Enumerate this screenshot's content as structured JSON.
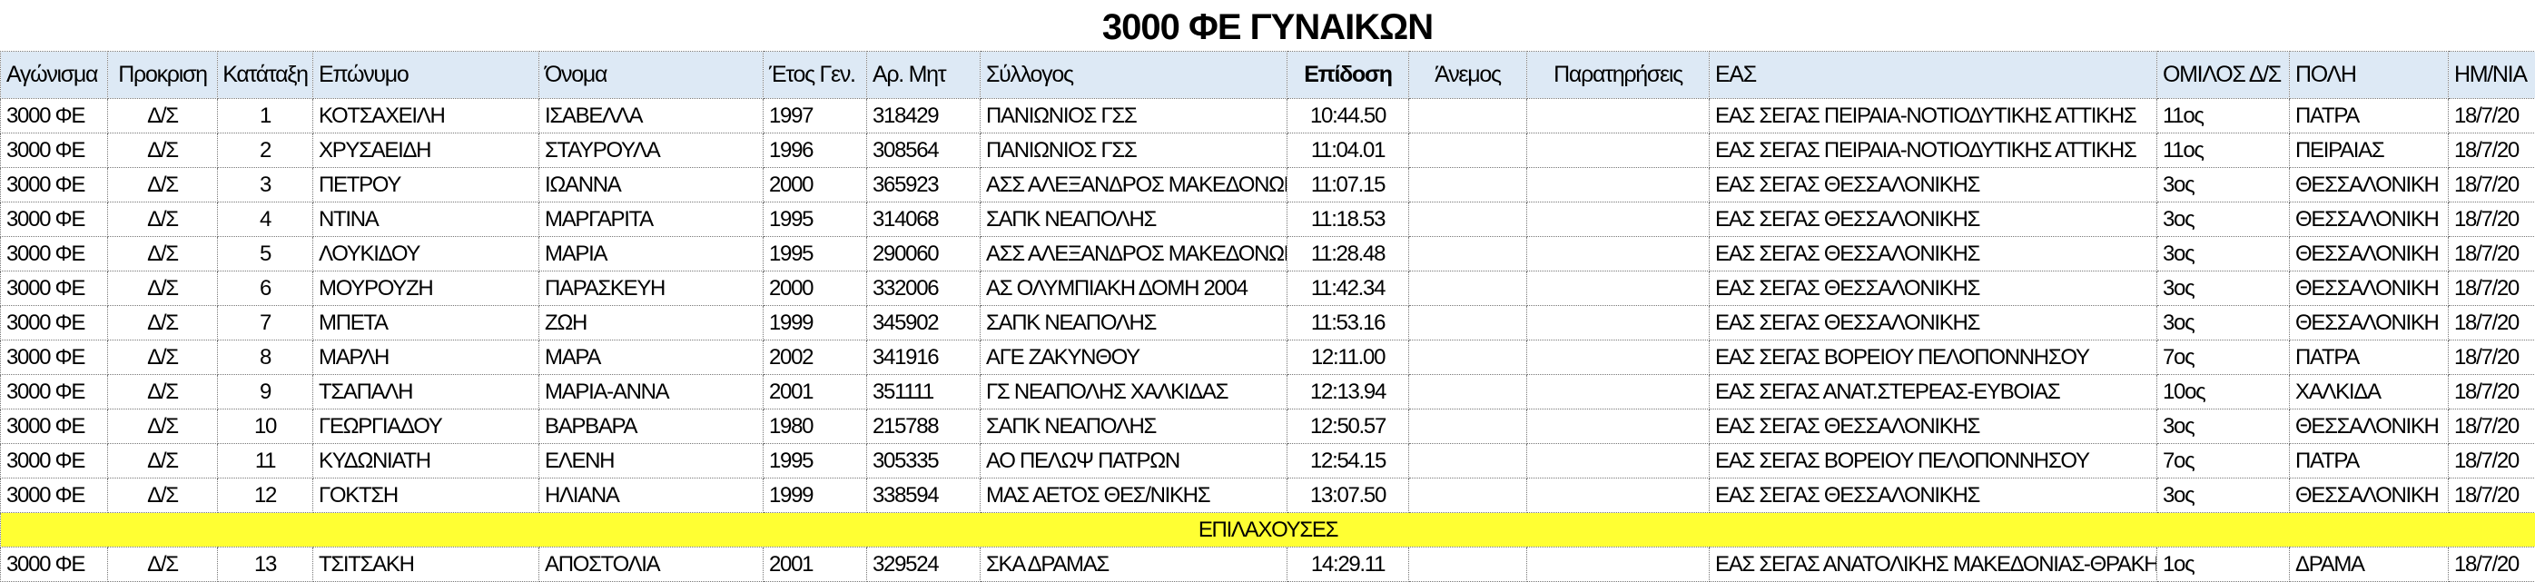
{
  "title": "3000 ΦΕ ΓΥΝΑΙΚΩΝ",
  "colors": {
    "header_bg": "#dde9f5",
    "substitutes_bg": "#ffff33"
  },
  "columns": [
    "Αγώνισμα",
    "Προκριση",
    "Κατάταξη",
    "Επώνυμο",
    "Όνομα",
    "Έτος Γεν.",
    "Αρ. Μητ",
    "Σύλλογος",
    "Επίδοση",
    "Άνεμος",
    "Παρατηρήσεις",
    "ΕΑΣ",
    "ΟΜΙΛΟΣ Δ/Σ",
    "ΠΟΛΗ",
    "ΗΜ/ΝΙΑ"
  ],
  "rows": [
    [
      "3000 ΦΕ",
      "Δ/Σ",
      "1",
      "ΚΟΤΣΑΧΕΙΛΗ",
      "ΙΣΑΒΕΛΛΑ",
      "1997",
      "318429",
      "ΠΑΝΙΩΝΙΟΣ ΓΣΣ",
      "10:44.50",
      "",
      "",
      "ΕΑΣ ΣΕΓΑΣ ΠΕΙΡΑΙΑ-ΝΟΤΙΟΔΥΤΙΚΗΣ ΑΤΤΙΚΗΣ",
      "11ος",
      "ΠΑΤΡΑ",
      "18/7/20"
    ],
    [
      "3000 ΦΕ",
      "Δ/Σ",
      "2",
      "ΧΡΥΣΑΕΙΔΗ",
      "ΣΤΑΥΡΟΥΛΑ",
      "1996",
      "308564",
      "ΠΑΝΙΩΝΙΟΣ ΓΣΣ",
      "11:04.01",
      "",
      "",
      "ΕΑΣ ΣΕΓΑΣ ΠΕΙΡΑΙΑ-ΝΟΤΙΟΔΥΤΙΚΗΣ ΑΤΤΙΚΗΣ",
      "11ος",
      "ΠΕΙΡΑΙΑΣ",
      "18/7/20"
    ],
    [
      "3000 ΦΕ",
      "Δ/Σ",
      "3",
      "ΠΕΤΡΟΥ",
      "ΙΩΑΝΝΑ",
      "2000",
      "365923",
      "ΑΣΣ ΑΛΕΞΑΝΔΡΟΣ ΜΑΚΕΔΟΝΩΝ",
      "11:07.15",
      "",
      "",
      "ΕΑΣ ΣΕΓΑΣ ΘΕΣΣΑΛΟΝΙΚΗΣ",
      "3ος",
      "ΘΕΣΣΑΛΟΝΙΚΗ",
      "18/7/20"
    ],
    [
      "3000 ΦΕ",
      "Δ/Σ",
      "4",
      "ΝΤΙΝΑ",
      "ΜΑΡΓΑΡΙΤΑ",
      "1995",
      "314068",
      "ΣΑΠΚ ΝΕΑΠΟΛΗΣ",
      "11:18.53",
      "",
      "",
      "ΕΑΣ ΣΕΓΑΣ ΘΕΣΣΑΛΟΝΙΚΗΣ",
      "3ος",
      "ΘΕΣΣΑΛΟΝΙΚΗ",
      "18/7/20"
    ],
    [
      "3000 ΦΕ",
      "Δ/Σ",
      "5",
      "ΛΟΥΚΙΔΟΥ",
      "ΜΑΡΙΑ",
      "1995",
      "290060",
      "ΑΣΣ ΑΛΕΞΑΝΔΡΟΣ ΜΑΚΕΔΟΝΩΝ",
      "11:28.48",
      "",
      "",
      "ΕΑΣ ΣΕΓΑΣ ΘΕΣΣΑΛΟΝΙΚΗΣ",
      "3ος",
      "ΘΕΣΣΑΛΟΝΙΚΗ",
      "18/7/20"
    ],
    [
      "3000 ΦΕ",
      "Δ/Σ",
      "6",
      "ΜΟΥΡΟΥΖΗ",
      "ΠΑΡΑΣΚΕΥΗ",
      "2000",
      "332006",
      "ΑΣ ΟΛΥΜΠΙΑΚΗ ΔΟΜΗ 2004",
      "11:42.34",
      "",
      "",
      "ΕΑΣ ΣΕΓΑΣ ΘΕΣΣΑΛΟΝΙΚΗΣ",
      "3ος",
      "ΘΕΣΣΑΛΟΝΙΚΗ",
      "18/7/20"
    ],
    [
      "3000 ΦΕ",
      "Δ/Σ",
      "7",
      "ΜΠΕΤΑ",
      "ΖΩΗ",
      "1999",
      "345902",
      "ΣΑΠΚ ΝΕΑΠΟΛΗΣ",
      "11:53.16",
      "",
      "",
      "ΕΑΣ ΣΕΓΑΣ ΘΕΣΣΑΛΟΝΙΚΗΣ",
      "3ος",
      "ΘΕΣΣΑΛΟΝΙΚΗ",
      "18/7/20"
    ],
    [
      "3000 ΦΕ",
      "Δ/Σ",
      "8",
      "ΜΑΡΛΗ",
      "ΜΑΡΑ",
      "2002",
      "341916",
      "ΑΓΕ ΖΑΚΥΝΘΟΥ",
      "12:11.00",
      "",
      "",
      "ΕΑΣ ΣΕΓΑΣ ΒΟΡΕΙΟΥ ΠΕΛΟΠΟΝΝΗΣΟΥ",
      "7ος",
      "ΠΑΤΡΑ",
      "18/7/20"
    ],
    [
      "3000 ΦΕ",
      "Δ/Σ",
      "9",
      "ΤΣΑΠΑΛΗ",
      "ΜΑΡΙΑ-ΑΝΝΑ",
      "2001",
      "351111",
      "ΓΣ ΝΕΑΠΟΛΗΣ ΧΑΛΚΙΔΑΣ",
      "12:13.94",
      "",
      "",
      "ΕΑΣ ΣΕΓΑΣ ΑΝΑΤ.ΣΤΕΡΕΑΣ-ΕΥΒΟΙΑΣ",
      "10ος",
      "ΧΑΛΚΙΔΑ",
      "18/7/20"
    ],
    [
      "3000 ΦΕ",
      "Δ/Σ",
      "10",
      "ΓΕΩΡΓΙΑΔΟΥ",
      "ΒΑΡΒΑΡΑ",
      "1980",
      "215788",
      "ΣΑΠΚ ΝΕΑΠΟΛΗΣ",
      "12:50.57",
      "",
      "",
      "ΕΑΣ ΣΕΓΑΣ ΘΕΣΣΑΛΟΝΙΚΗΣ",
      "3ος",
      "ΘΕΣΣΑΛΟΝΙΚΗ",
      "18/7/20"
    ],
    [
      "3000 ΦΕ",
      "Δ/Σ",
      "11",
      "ΚΥΔΩΝΙΑΤΗ",
      "ΕΛΕΝΗ",
      "1995",
      "305335",
      "ΑΟ ΠΕΛΩΨ ΠΑΤΡΩΝ",
      "12:54.15",
      "",
      "",
      "ΕΑΣ ΣΕΓΑΣ ΒΟΡΕΙΟΥ ΠΕΛΟΠΟΝΝΗΣΟΥ",
      "7ος",
      "ΠΑΤΡΑ",
      "18/7/20"
    ],
    [
      "3000 ΦΕ",
      "Δ/Σ",
      "12",
      "ΓΟΚΤΣΗ",
      "ΗΛΙΑΝΑ",
      "1999",
      "338594",
      "ΜΑΣ ΑΕΤΟΣ ΘΕΣ/ΝΙΚΗΣ",
      "13:07.50",
      "",
      "",
      "ΕΑΣ ΣΕΓΑΣ ΘΕΣΣΑΛΟΝΙΚΗΣ",
      "3ος",
      "ΘΕΣΣΑΛΟΝΙΚΗ",
      "18/7/20"
    ]
  ],
  "substitutes_label": "ΕΠΙΛΑΧΟΥΣΕΣ",
  "substitutes": [
    [
      "3000 ΦΕ",
      "Δ/Σ",
      "13",
      "ΤΣΙΤΣΑΚΗ",
      "ΑΠΟΣΤΟΛΙΑ",
      "2001",
      "329524",
      "ΣΚΑ ΔΡΑΜΑΣ",
      "14:29.11",
      "",
      "",
      "ΕΑΣ ΣΕΓΑΣ ΑΝΑΤΟΛΙΚΗΣ ΜΑΚΕΔΟΝΙΑΣ-ΘΡΑΚΗΣ",
      "1ος",
      "ΔΡΑΜΑ",
      "18/7/20"
    ]
  ]
}
